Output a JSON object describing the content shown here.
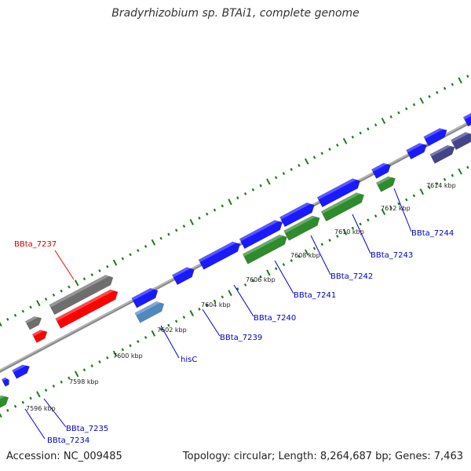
{
  "title": "Bradyrhizobium sp. BTAi1, complete genome",
  "footer": {
    "accession": "Accession: NC_009485",
    "summary": "Topology: circular; Length: 8,264,687 bp; Genes: 7,463"
  },
  "colors": {
    "backbone": "#8c8c8c",
    "tick": "#1e7a1e",
    "gene_blue": "#1a1aff",
    "gene_green": "#2e8b2e",
    "gene_red": "#ff0000",
    "gene_gray": "#6e6e6e",
    "gene_steel": "#4f88c0",
    "gene_navy": "#44448a",
    "label_blue": "#0000c0",
    "label_red": "#d00000",
    "leader_blue": "#0000d0",
    "leader_red": "#ff0000"
  },
  "scale_labels": [
    "7596 kbp",
    "7598 kbp",
    "7600 kbp",
    "7602 kbp",
    "7604 kbp",
    "7606 kbp",
    "7608 kbp",
    "7610 kbp",
    "7612 kbp",
    "7614 kbp"
  ],
  "gene_labels": [
    "BBta_7237",
    "BBta_7235",
    "BBta_7234",
    "hisC",
    "BBta_7239",
    "BBta_7240",
    "BBta_7241",
    "BBta_7242",
    "BBta_7243",
    "BBta_7244"
  ]
}
